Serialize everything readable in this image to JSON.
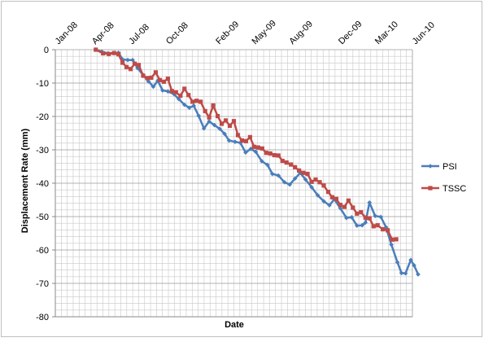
{
  "chart_data": {
    "type": "line",
    "xlabel": "Date",
    "ylabel": "Displacement Rate (mm)",
    "ylim": [
      -80,
      0
    ],
    "yticks": [
      0,
      -10,
      -20,
      -30,
      -40,
      -50,
      -60,
      -70,
      -80
    ],
    "ytick_labels": [
      "0",
      "-10",
      "-20",
      "-30",
      "-40",
      "-50",
      "-60",
      "-70",
      "-80"
    ],
    "xlim": [
      "2008-01-01",
      "2010-06-01"
    ],
    "xticks": [
      "2008-01-01",
      "2008-04-01",
      "2008-07-01",
      "2008-10-01",
      "2009-02-01",
      "2009-05-01",
      "2009-08-01",
      "2009-12-01",
      "2010-03-01",
      "2010-06-01"
    ],
    "xtick_labels": [
      "Jan-08",
      "Apr-08",
      "Jul-08",
      "Oct-08",
      "Feb-09",
      "May-09",
      "Aug-09",
      "Dec-09",
      "Mar-10",
      "Jun-10"
    ],
    "grid": true,
    "legend_position": "right",
    "series": [
      {
        "name": "PSI",
        "color": "#4a7ebb",
        "marker": "diamond",
        "points": [
          [
            "2008-04-10",
            0
          ],
          [
            "2008-04-25",
            -0.6
          ],
          [
            "2008-05-10",
            -1.1
          ],
          [
            "2008-05-25",
            -1
          ],
          [
            "2008-06-05",
            -0.9
          ],
          [
            "2008-06-15",
            -2.9
          ],
          [
            "2008-06-28",
            -3.1
          ],
          [
            "2008-07-10",
            -3.1
          ],
          [
            "2008-07-22",
            -5.5
          ],
          [
            "2008-08-05",
            -7.6
          ],
          [
            "2008-08-18",
            -9.5
          ],
          [
            "2008-08-30",
            -11.1
          ],
          [
            "2008-09-10",
            -9.3
          ],
          [
            "2008-09-22",
            -12.2
          ],
          [
            "2008-10-05",
            -12.5
          ],
          [
            "2008-10-20",
            -13.3
          ],
          [
            "2008-11-01",
            -14.8
          ],
          [
            "2008-11-15",
            -16.5
          ],
          [
            "2008-11-27",
            -17.4
          ],
          [
            "2008-12-08",
            -16.8
          ],
          [
            "2008-12-20",
            -19.8
          ],
          [
            "2009-01-02",
            -23.6
          ],
          [
            "2009-01-15",
            -21.5
          ],
          [
            "2009-01-28",
            -22.6
          ],
          [
            "2009-02-10",
            -23.7
          ],
          [
            "2009-02-22",
            -25.2
          ],
          [
            "2009-03-05",
            -27.2
          ],
          [
            "2009-03-20",
            -27.6
          ],
          [
            "2009-04-02",
            -27.9
          ],
          [
            "2009-04-15",
            -30.8
          ],
          [
            "2009-04-28",
            -29.7
          ],
          [
            "2009-05-10",
            -30.6
          ],
          [
            "2009-05-25",
            -33.4
          ],
          [
            "2009-06-08",
            -34.5
          ],
          [
            "2009-06-20",
            -37.2
          ],
          [
            "2009-07-05",
            -37.7
          ],
          [
            "2009-07-20",
            -39.7
          ],
          [
            "2009-08-02",
            -40.4
          ],
          [
            "2009-08-15",
            -38.6
          ],
          [
            "2009-08-28",
            -36.9
          ],
          [
            "2009-09-10",
            -38.9
          ],
          [
            "2009-09-25",
            -41.2
          ],
          [
            "2009-10-10",
            -43.6
          ],
          [
            "2009-10-25",
            -45.4
          ],
          [
            "2009-11-08",
            -46.6
          ],
          [
            "2009-11-20",
            -44.8
          ],
          [
            "2009-12-05",
            -47.5
          ],
          [
            "2009-12-20",
            -50.4
          ],
          [
            "2010-01-02",
            -50.2
          ],
          [
            "2010-01-15",
            -52.7
          ],
          [
            "2010-01-28",
            -52.6
          ],
          [
            "2010-02-05",
            -51.8
          ],
          [
            "2010-02-15",
            -45.8
          ],
          [
            "2010-03-01",
            -49.8
          ],
          [
            "2010-03-15",
            -50.1
          ],
          [
            "2010-03-28",
            -53.2
          ],
          [
            "2010-04-10",
            -58.4
          ],
          [
            "2010-04-25",
            -63.7
          ],
          [
            "2010-05-05",
            -66.9
          ],
          [
            "2010-05-15",
            -67
          ],
          [
            "2010-05-28",
            -63
          ],
          [
            "2010-06-05",
            -64.6
          ],
          [
            "2010-06-15",
            -67.3
          ]
        ]
      },
      {
        "name": "TSSC",
        "color": "#be4b48",
        "marker": "square",
        "points": [
          [
            "2008-04-10",
            0
          ],
          [
            "2008-04-28",
            -1.1
          ],
          [
            "2008-05-12",
            -1.3
          ],
          [
            "2008-05-25",
            -1
          ],
          [
            "2008-06-05",
            -1.4
          ],
          [
            "2008-06-15",
            -3.9
          ],
          [
            "2008-06-25",
            -5.2
          ],
          [
            "2008-07-05",
            -5.8
          ],
          [
            "2008-07-15",
            -4.2
          ],
          [
            "2008-07-25",
            -4.6
          ],
          [
            "2008-08-05",
            -7.8
          ],
          [
            "2008-08-15",
            -8.5
          ],
          [
            "2008-08-25",
            -8.4
          ],
          [
            "2008-09-05",
            -6.8
          ],
          [
            "2008-09-15",
            -9.1
          ],
          [
            "2008-09-25",
            -9.6
          ],
          [
            "2008-10-05",
            -8.7
          ],
          [
            "2008-10-15",
            -12.4
          ],
          [
            "2008-10-25",
            -12.8
          ],
          [
            "2008-11-05",
            -13.8
          ],
          [
            "2008-11-15",
            -11.7
          ],
          [
            "2008-11-25",
            -13.6
          ],
          [
            "2008-12-05",
            -15.6
          ],
          [
            "2008-12-15",
            -15.3
          ],
          [
            "2008-12-25",
            -15.6
          ],
          [
            "2009-01-05",
            -18.4
          ],
          [
            "2009-01-15",
            -20.3
          ],
          [
            "2009-01-25",
            -16.7
          ],
          [
            "2009-02-05",
            -19.9
          ],
          [
            "2009-02-15",
            -22.2
          ],
          [
            "2009-02-25",
            -21.2
          ],
          [
            "2009-03-07",
            -22.8
          ],
          [
            "2009-03-17",
            -21.4
          ],
          [
            "2009-03-27",
            -25.6
          ],
          [
            "2009-04-06",
            -27.2
          ],
          [
            "2009-04-16",
            -27.4
          ],
          [
            "2009-04-26",
            -26.2
          ],
          [
            "2009-05-06",
            -29.1
          ],
          [
            "2009-05-16",
            -29.3
          ],
          [
            "2009-05-26",
            -29.6
          ],
          [
            "2009-06-05",
            -30.9
          ],
          [
            "2009-06-15",
            -31.1
          ],
          [
            "2009-06-25",
            -31.6
          ],
          [
            "2009-07-05",
            -31.7
          ],
          [
            "2009-07-15",
            -33.3
          ],
          [
            "2009-07-25",
            -33.8
          ],
          [
            "2009-08-05",
            -34.4
          ],
          [
            "2009-08-15",
            -35.2
          ],
          [
            "2009-08-25",
            -36.2
          ],
          [
            "2009-09-05",
            -36.9
          ],
          [
            "2009-09-15",
            -37.2
          ],
          [
            "2009-09-25",
            -39.6
          ],
          [
            "2009-10-05",
            -38.9
          ],
          [
            "2009-10-15",
            -39.7
          ],
          [
            "2009-10-25",
            -40.7
          ],
          [
            "2009-11-05",
            -42.6
          ],
          [
            "2009-11-15",
            -44.2
          ],
          [
            "2009-11-25",
            -44.7
          ],
          [
            "2009-12-05",
            -46.5
          ],
          [
            "2009-12-15",
            -47.1
          ],
          [
            "2009-12-25",
            -45.2
          ],
          [
            "2010-01-05",
            -47.3
          ],
          [
            "2010-01-15",
            -49.1
          ],
          [
            "2010-01-25",
            -48.7
          ],
          [
            "2010-02-05",
            -50.3
          ],
          [
            "2010-02-15",
            -50.5
          ],
          [
            "2010-02-25",
            -52.9
          ],
          [
            "2010-03-07",
            -52.6
          ],
          [
            "2010-03-20",
            -53.8
          ],
          [
            "2010-04-01",
            -54.1
          ],
          [
            "2010-04-12",
            -56.9
          ],
          [
            "2010-04-22",
            -56.8
          ]
        ]
      }
    ]
  }
}
